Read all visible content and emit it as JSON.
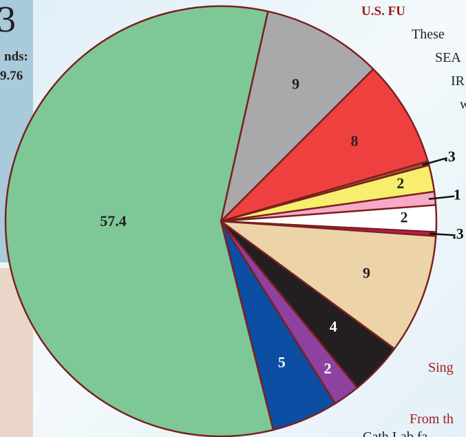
{
  "chart_data": {
    "type": "pie",
    "values": [
      9,
      8,
      0.3,
      2,
      1,
      2,
      0.3,
      9,
      4,
      2,
      5,
      57.4
    ],
    "value_labels": [
      "9",
      "8",
      ".3",
      "2",
      "1",
      "2",
      ".3",
      "9",
      "4",
      "2",
      "5",
      "57.4"
    ],
    "colors": [
      "#a9a9ac",
      "#ef4040",
      "#9a5a30",
      "#f6ee6c",
      "#f7aac6",
      "#ffffff",
      "#c4195e",
      "#ecd3a8",
      "#231f20",
      "#8d42a0",
      "#0b4ea3",
      "#7dc896"
    ]
  },
  "background_text": {
    "left_big": "3",
    "left_line1": "nds:",
    "left_line2": "9.76",
    "right_title": "U.S. FU",
    "right_line1": "These",
    "right_line2": "SEA",
    "right_line3": "IR",
    "right_line4": "w",
    "right_line5": "Sing",
    "right_line6": "From th",
    "right_line7": "Cath Lab fa"
  }
}
